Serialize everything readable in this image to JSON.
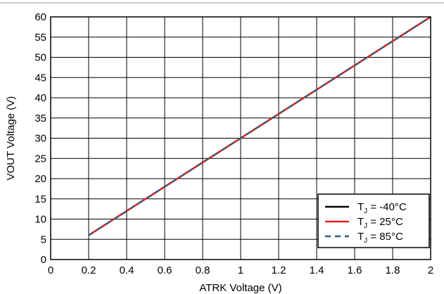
{
  "chart_data": {
    "type": "line",
    "title": "",
    "xlabel": "ATRK Voltage (V)",
    "ylabel": "VOUT Voltage (V)",
    "xlim": [
      0,
      2
    ],
    "ylim": [
      0,
      60
    ],
    "x_ticks": [
      "0",
      "0.2",
      "0.4",
      "0.6",
      "0.8",
      "1",
      "1.2",
      "1.4",
      "1.6",
      "1.8",
      "2"
    ],
    "y_ticks": [
      "0",
      "5",
      "10",
      "15",
      "20",
      "25",
      "30",
      "35",
      "40",
      "45",
      "50",
      "55",
      "60"
    ],
    "grid": true,
    "legend_position": "bottom-right",
    "series": [
      {
        "name": "-40°C",
        "x": [
          0.2,
          2
        ],
        "y": [
          6,
          60
        ],
        "color": "#000000",
        "style": "solid"
      },
      {
        "name": "25°C",
        "x": [
          0.2,
          2
        ],
        "y": [
          6,
          60
        ],
        "color": "#e8201c",
        "style": "solid"
      },
      {
        "name": "85°C",
        "x": [
          0.2,
          2
        ],
        "y": [
          6,
          60
        ],
        "color": "#2d5a86",
        "style": "dashed"
      }
    ],
    "legend": {
      "prefix": "T",
      "subscript": "J",
      "separator": " = "
    }
  }
}
